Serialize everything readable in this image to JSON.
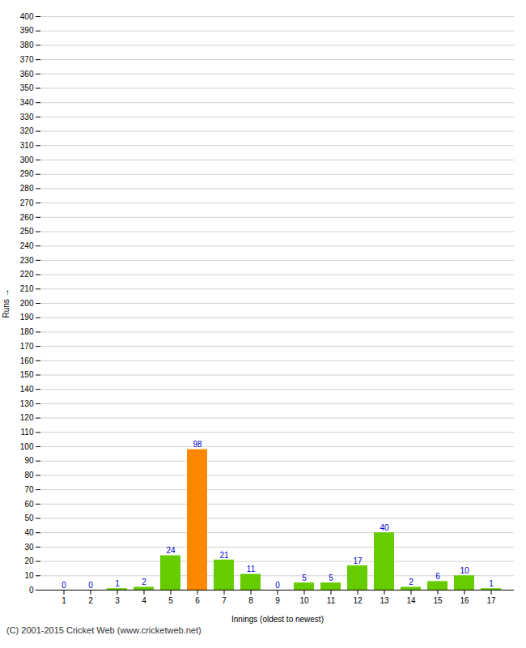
{
  "chart_data": {
    "type": "bar",
    "xlabel": "Innings (oldest to newest)",
    "ylabel": "Runs",
    "categories": [
      1,
      2,
      3,
      4,
      5,
      6,
      7,
      8,
      9,
      10,
      11,
      12,
      13,
      14,
      15,
      16,
      17
    ],
    "values": [
      0,
      0,
      1,
      2,
      24,
      98,
      21,
      11,
      0,
      5,
      5,
      17,
      40,
      2,
      6,
      10,
      1
    ],
    "colors": [
      "#66cc00",
      "#66cc00",
      "#66cc00",
      "#66cc00",
      "#66cc00",
      "#ff8800",
      "#66cc00",
      "#66cc00",
      "#66cc00",
      "#66cc00",
      "#66cc00",
      "#66cc00",
      "#66cc00",
      "#66cc00",
      "#66cc00",
      "#66cc00",
      "#66cc00"
    ],
    "ylim": [
      0,
      400
    ],
    "yticks": [
      0,
      10,
      20,
      30,
      40,
      50,
      60,
      70,
      80,
      90,
      100,
      110,
      120,
      130,
      140,
      150,
      160,
      170,
      180,
      190,
      200,
      210,
      220,
      230,
      240,
      250,
      260,
      270,
      280,
      290,
      300,
      310,
      320,
      330,
      340,
      350,
      360,
      370,
      380,
      390,
      400
    ],
    "grid": true,
    "data_labels": true,
    "annotation": "(C) 2001-2015 Cricket Web (www.cricketweb.net)"
  }
}
